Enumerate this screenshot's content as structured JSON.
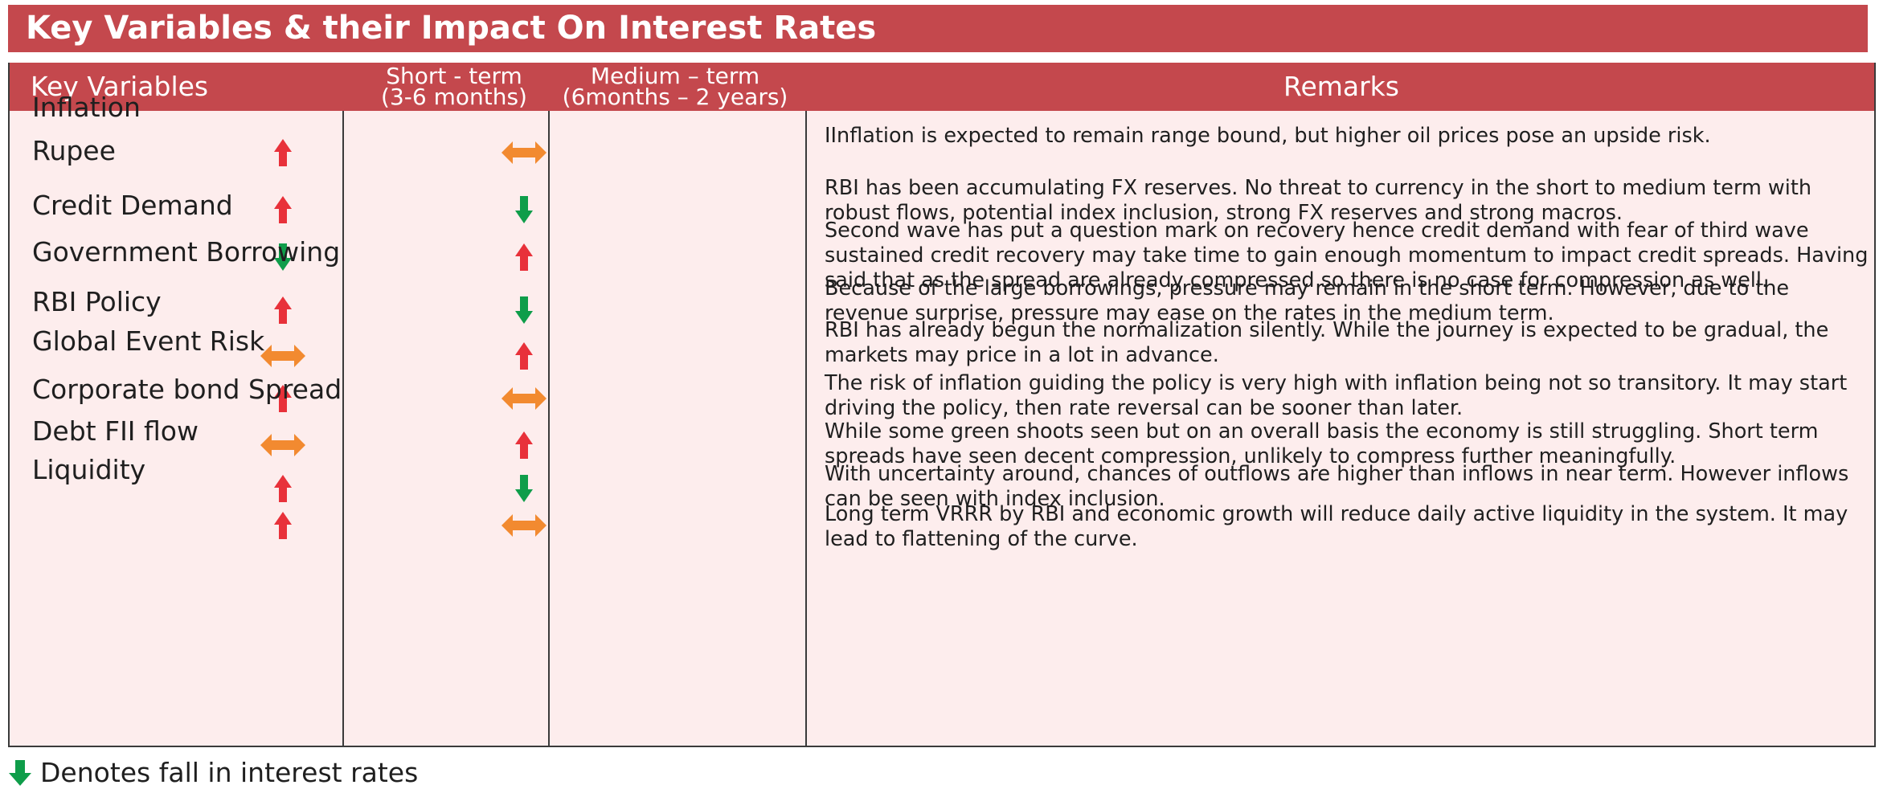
{
  "title": "Key Variables & their Impact On Interest Rates",
  "headers": {
    "key_variables": "Key Variables",
    "short_term_line1": "Short  - term",
    "short_term_line2": "(3-6 months)",
    "medium_term_line1": "Medium – term",
    "medium_term_line2": "(6months – 2 years)",
    "remarks": "Remarks"
  },
  "colors": {
    "header_bg": "#c4484d",
    "table_bg": "#fdeded",
    "up": "#e8313a",
    "down": "#0f9d4a",
    "neutral": "#f28a30"
  },
  "rows": [
    {
      "variable": "Inflation",
      "short_term": "up",
      "medium_term": "neutral",
      "remarks": "IInflation is expected to remain range bound, but higher oil prices pose an upside risk."
    },
    {
      "variable": "Rupee",
      "short_term": "up",
      "medium_term": "down",
      "remarks": "RBI has been accumulating FX reserves. No threat to currency in the short to medium term with robust flows, potential index inclusion, strong FX reserves and strong macros."
    },
    {
      "variable": "Credit Demand",
      "short_term": "down",
      "medium_term": "up",
      "remarks": "Second wave has put a question mark on recovery hence credit demand with fear of third wave sustained credit recovery may take time to gain enough momentum to impact credit spreads. Having said that as the spread are already compressed so there is no case for compression as well."
    },
    {
      "variable": "Government Borrowing",
      "short_term": "up",
      "medium_term": "down",
      "remarks": "Because of the large borrowings, pressure may remain in the short term. However, due to the revenue surprise, pressure may ease on the rates in the medium term."
    },
    {
      "variable": "RBI Policy",
      "short_term": "neutral",
      "medium_term": "up",
      "remarks": "RBI has already begun the normalization silently. While the journey is expected to be gradual, the markets may price in a lot in advance."
    },
    {
      "variable": "Global Event Risk",
      "short_term": "up",
      "medium_term": "neutral",
      "remarks": "The risk of inflation guiding the policy is very high with inflation being not so transitory. It may start driving the policy, then rate reversal can be sooner than later."
    },
    {
      "variable": "Corporate bond Spread",
      "short_term": "neutral",
      "medium_term": "up",
      "remarks": "While some green shoots seen but on an overall basis the economy is still struggling. Short term spreads have seen decent compression, unlikely to compress further meaningfully."
    },
    {
      "variable": "Debt FII flow",
      "short_term": "up",
      "medium_term": "down",
      "remarks": "With uncertainty around, chances of outflows are higher than inflows in near term. However inflows can be seen with index inclusion."
    },
    {
      "variable": "Liquidity",
      "short_term": "up",
      "medium_term": "neutral",
      "remarks": "Long term VRRR by RBI and economic growth will reduce daily active liquidity in the system. It may lead to flattening of the curve."
    }
  ],
  "legend": {
    "icon": "down-arrow-icon",
    "text": "Denotes fall in interest rates"
  }
}
